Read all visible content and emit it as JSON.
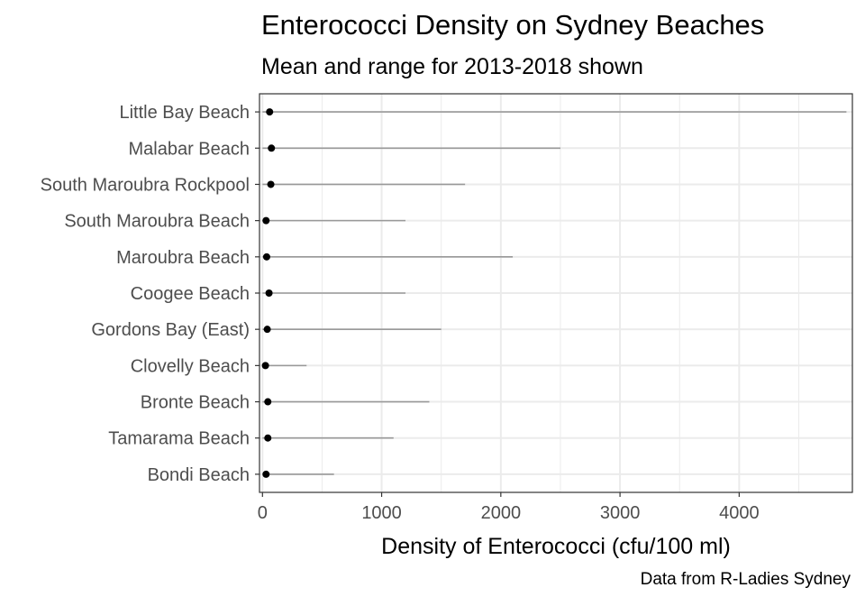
{
  "chart_data": {
    "type": "range-dot",
    "title": "Enterococci Density on Sydney Beaches",
    "subtitle": "Mean and range for 2013-2018 shown",
    "xlabel": "Density of Enterococci (cfu/100 ml)",
    "ylabel": "",
    "caption": "Data from R-Ladies Sydney",
    "xlim": [
      -25,
      4950
    ],
    "x_ticks": [
      0,
      1000,
      2000,
      3000,
      4000
    ],
    "grid": true,
    "colors": {
      "point": "#000000",
      "range_line": "#999999",
      "grid": "#ebebeb",
      "panel_border": "#333333"
    },
    "categories": [
      "Little Bay Beach",
      "Malabar Beach",
      "South Maroubra Rockpool",
      "South Maroubra Beach",
      "Maroubra Beach",
      "Coogee Beach",
      "Gordons Bay (East)",
      "Clovelly Beach",
      "Bronte Beach",
      "Tamarama Beach",
      "Bondi Beach"
    ],
    "series": [
      {
        "values_mean": [
          60,
          75,
          70,
          30,
          35,
          55,
          40,
          25,
          45,
          45,
          30
        ]
      },
      {
        "values_min": [
          0,
          0,
          0,
          0,
          0,
          0,
          0,
          0,
          0,
          0,
          0
        ]
      },
      {
        "values_max": [
          4900,
          2500,
          1700,
          1200,
          2100,
          1200,
          1500,
          370,
          1400,
          1100,
          600
        ]
      }
    ]
  }
}
